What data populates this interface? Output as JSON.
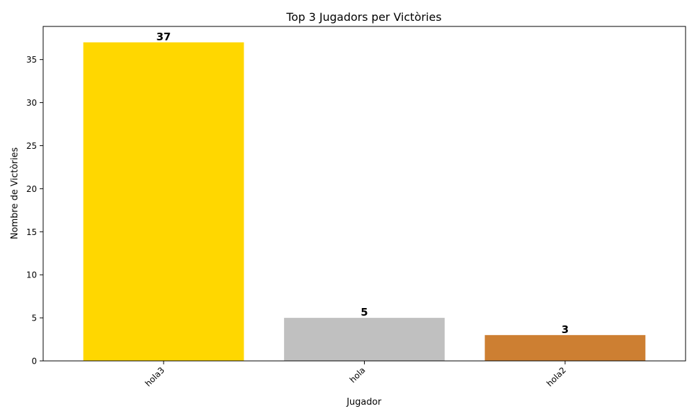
{
  "chart_data": {
    "type": "bar",
    "title": "Top 3 Jugadors per Victòries",
    "xlabel": "Jugador",
    "ylabel": "Nombre de Victòries",
    "categories": [
      "hola3",
      "hola",
      "hola2"
    ],
    "values": [
      37,
      5,
      3
    ],
    "data_labels": [
      "37",
      "5",
      "3"
    ],
    "colors": [
      "#ffd700",
      "#c0c0c0",
      "#cd7f32"
    ],
    "ylim": [
      0,
      38.85
    ],
    "yticks": [
      0,
      5,
      10,
      15,
      20,
      25,
      30,
      35
    ],
    "ytick_labels": [
      "0",
      "5",
      "10",
      "15",
      "20",
      "25",
      "30",
      "35"
    ],
    "xtick_rotation_deg": 45,
    "grid": false,
    "legend": null
  }
}
